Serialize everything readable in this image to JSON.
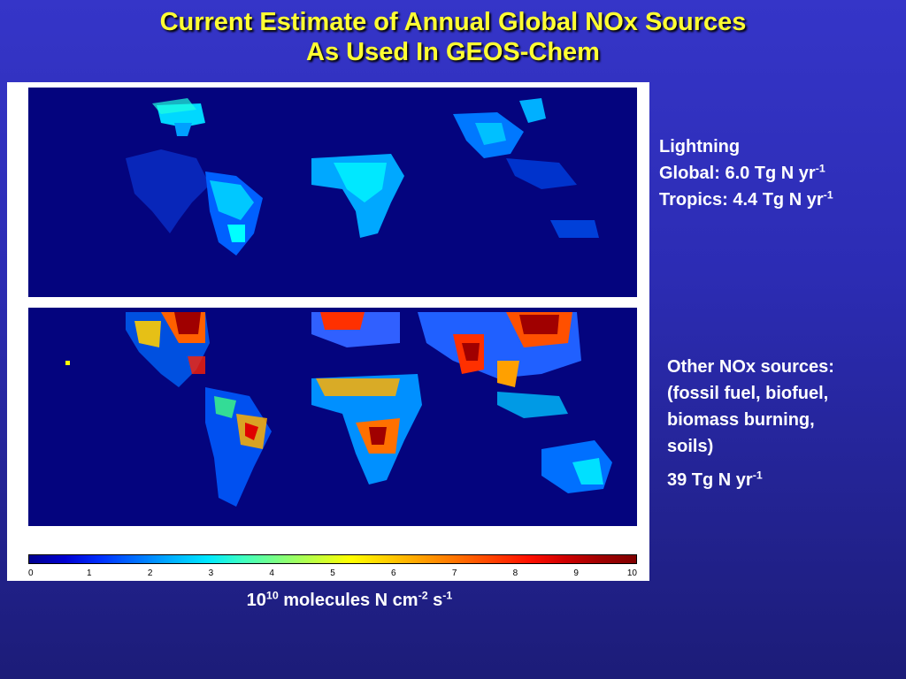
{
  "title": {
    "line1": "Current Estimate of Annual Global NOx Sources",
    "line2": "As Used In GEOS-Chem"
  },
  "lightning": {
    "heading": "Lightning",
    "global_label": "Global: 6.0 Tg N yr",
    "tropics_label": "Tropics: 4.4 Tg N yr",
    "exponent": "-1"
  },
  "other": {
    "line1": "Other NOx sources:",
    "line2": "(fossil fuel, biofuel,",
    "line3": "biomass burning,",
    "line4": "soils)",
    "total_label": "39 Tg N yr",
    "exponent": "-1"
  },
  "units": {
    "base": "10",
    "base_exp": "10",
    "middle": " molecules N  cm",
    "cm_exp": "-2",
    "s": " s",
    "s_exp": "-1"
  },
  "colorbar": {
    "ticks": [
      "0",
      "1",
      "2",
      "3",
      "4",
      "5",
      "6",
      "7",
      "8",
      "9",
      "10"
    ],
    "colors": [
      "#00008f",
      "#0000d0",
      "#0030ff",
      "#0070ff",
      "#00b0ff",
      "#00e8ff",
      "#40ffc0",
      "#80ff80",
      "#c0ff40",
      "#ffff00",
      "#ffd000",
      "#ffa000",
      "#ff7000",
      "#ff4000",
      "#ff1000",
      "#d00000",
      "#a00000",
      "#800000"
    ]
  },
  "colors": {
    "title": "#ffff33",
    "map_background": "#04047e"
  }
}
